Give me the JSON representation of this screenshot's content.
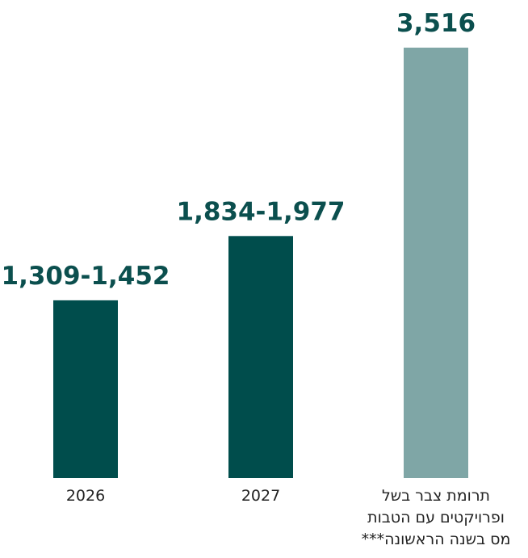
{
  "chart_data": {
    "type": "bar",
    "categories": [
      [
        "2026"
      ],
      [
        "2027"
      ],
      [
        "תרומת צבר בשל",
        "ופרויקטים עם הטבות",
        "מס בשנה הראשונה***"
      ]
    ],
    "values": [
      1452,
      1977,
      3516
    ],
    "data_labels": [
      "1,309-1,452",
      "1,834-1,977",
      "3,516"
    ],
    "colors": [
      "#004d4c",
      "#004d4c",
      "#7fa6a6"
    ],
    "label_color": "#0b4f4e",
    "title": "",
    "xlabel": "",
    "ylabel": "",
    "ylim": [
      0,
      3516
    ],
    "grid": false,
    "legend": "none"
  }
}
